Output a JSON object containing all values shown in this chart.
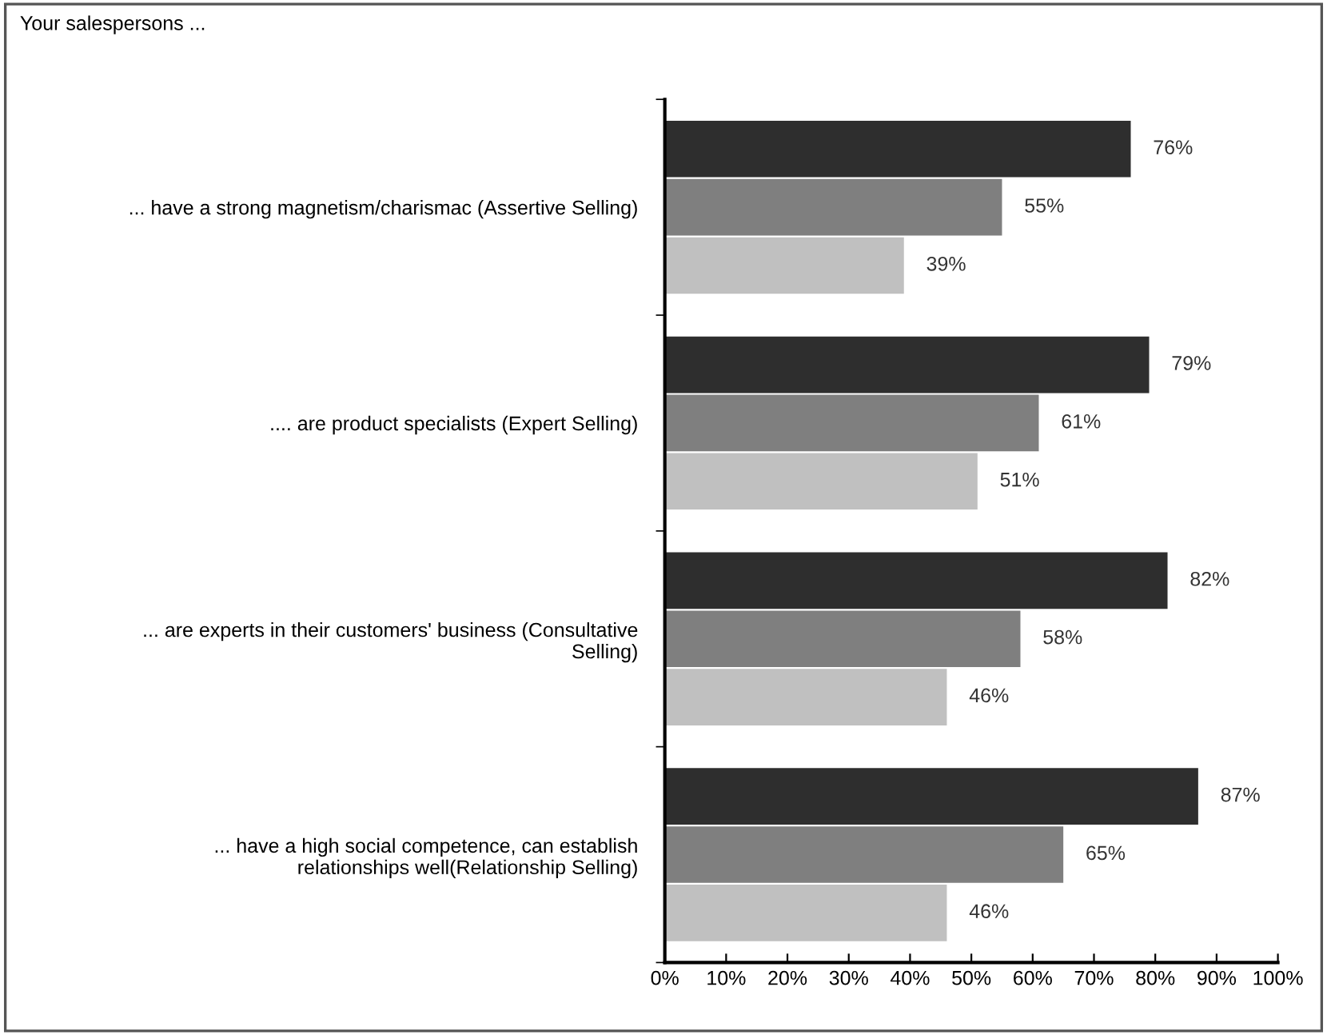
{
  "chart_data": {
    "type": "bar",
    "orientation": "horizontal",
    "title": "Your salespersons ...",
    "categories": [
      "... have a strong magnetism/charismac (Assertive Selling)",
      ".... are product specialists (Expert Selling)",
      "... are experts in their customers' business (Consultative\nSelling)",
      "... have a high social competence, can establish\nrelationships well(Relationship Selling)"
    ],
    "series": [
      {
        "color": "#2e2e2e",
        "values": [
          76,
          79,
          82,
          87
        ],
        "value_labels": [
          "76%",
          "79%",
          "82%",
          "87%"
        ]
      },
      {
        "color": "#7f7f7f",
        "values": [
          55,
          61,
          58,
          65
        ],
        "value_labels": [
          "55%",
          "61%",
          "58%",
          "65%"
        ]
      },
      {
        "color": "#c0c0c0",
        "values": [
          39,
          51,
          46,
          46
        ],
        "value_labels": [
          "39%",
          "51%",
          "46%",
          "46%"
        ]
      }
    ],
    "xlim": [
      0,
      100
    ],
    "xticks": [
      {
        "value": 0,
        "label": "0%"
      },
      {
        "value": 10,
        "label": "10%"
      },
      {
        "value": 20,
        "label": "20%"
      },
      {
        "value": 30,
        "label": "30%"
      },
      {
        "value": 40,
        "label": "40%"
      },
      {
        "value": 50,
        "label": "50%"
      },
      {
        "value": 60,
        "label": "60%"
      },
      {
        "value": 70,
        "label": "70%"
      },
      {
        "value": 80,
        "label": "80%"
      },
      {
        "value": 90,
        "label": "90%"
      },
      {
        "value": 100,
        "label": "100%"
      }
    ],
    "grid": false
  }
}
